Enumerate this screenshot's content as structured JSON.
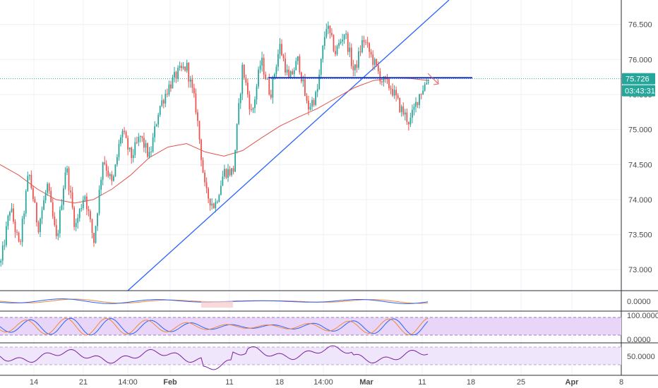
{
  "chart_data": [
    {
      "type": "candlestick",
      "title": "",
      "price_axis_ticks": [
        "76.500",
        "76.000",
        "75.500",
        "75.000",
        "74.500",
        "74.000",
        "73.500",
        "73.000"
      ],
      "ylim": [
        72.7,
        76.85
      ],
      "x_axis_labels": [
        {
          "text": "14",
          "bold": false
        },
        {
          "text": "21",
          "bold": false
        },
        {
          "text": "14:00",
          "bold": false
        },
        {
          "text": "Feb",
          "bold": true
        },
        {
          "text": "11",
          "bold": false
        },
        {
          "text": "18",
          "bold": false
        },
        {
          "text": "14:00",
          "bold": false
        },
        {
          "text": "Mar",
          "bold": true
        },
        {
          "text": "11",
          "bold": false
        },
        {
          "text": "18",
          "bold": false
        },
        {
          "text": "25",
          "bold": false
        },
        {
          "text": "Apr",
          "bold": true
        },
        {
          "text": "8",
          "bold": false
        }
      ],
      "close_path": [
        73.1,
        73.9,
        73.3,
        74.4,
        73.6,
        74.2,
        73.4,
        74.5,
        73.6,
        74.1,
        73.4,
        74.6,
        74.2,
        75.0,
        74.6,
        74.9,
        74.6,
        75.3,
        75.6,
        75.8,
        75.9,
        75.3,
        74.1,
        73.9,
        74.4,
        74.4,
        75.9,
        75.2,
        76.0,
        75.5,
        76.2,
        75.7,
        76.0,
        75.3,
        75.5,
        76.5,
        76.1,
        76.4,
        75.8,
        76.3,
        76.0,
        75.7,
        75.6,
        75.3,
        75.1,
        75.5,
        75.726
      ],
      "moving_average": [
        74.5,
        74.35,
        74.15,
        74.0,
        73.95,
        74.0,
        74.15,
        74.35,
        74.6,
        74.75,
        74.8,
        74.68,
        74.62,
        74.7,
        74.88,
        75.05,
        75.18,
        75.3,
        75.45,
        75.6,
        75.7,
        75.74,
        75.73,
        75.7
      ],
      "last_price": "75.726",
      "countdown": "03:43:31",
      "horizontal_level": 75.74,
      "colors": {
        "up": "#26a69a",
        "down": "#ef5350",
        "trendline": "#2962ff",
        "level": "#1e32c8",
        "ma": "#e0544a",
        "last_price_badge": "#26a69a"
      }
    },
    {
      "type": "line",
      "name": "oscillator",
      "ticks": [
        "0.0000"
      ]
    },
    {
      "type": "line",
      "name": "stochastic",
      "ticks": [
        "100.0000",
        "0.0000"
      ],
      "colors": {
        "band": "#e8d5f8",
        "k": "#2962ff",
        "d": "#ef8a3a"
      }
    },
    {
      "type": "line",
      "name": "rsi",
      "ticks": [
        "50.0000"
      ],
      "colors": {
        "band": "#f0e6fb",
        "line": "#7b1fa2"
      }
    }
  ]
}
